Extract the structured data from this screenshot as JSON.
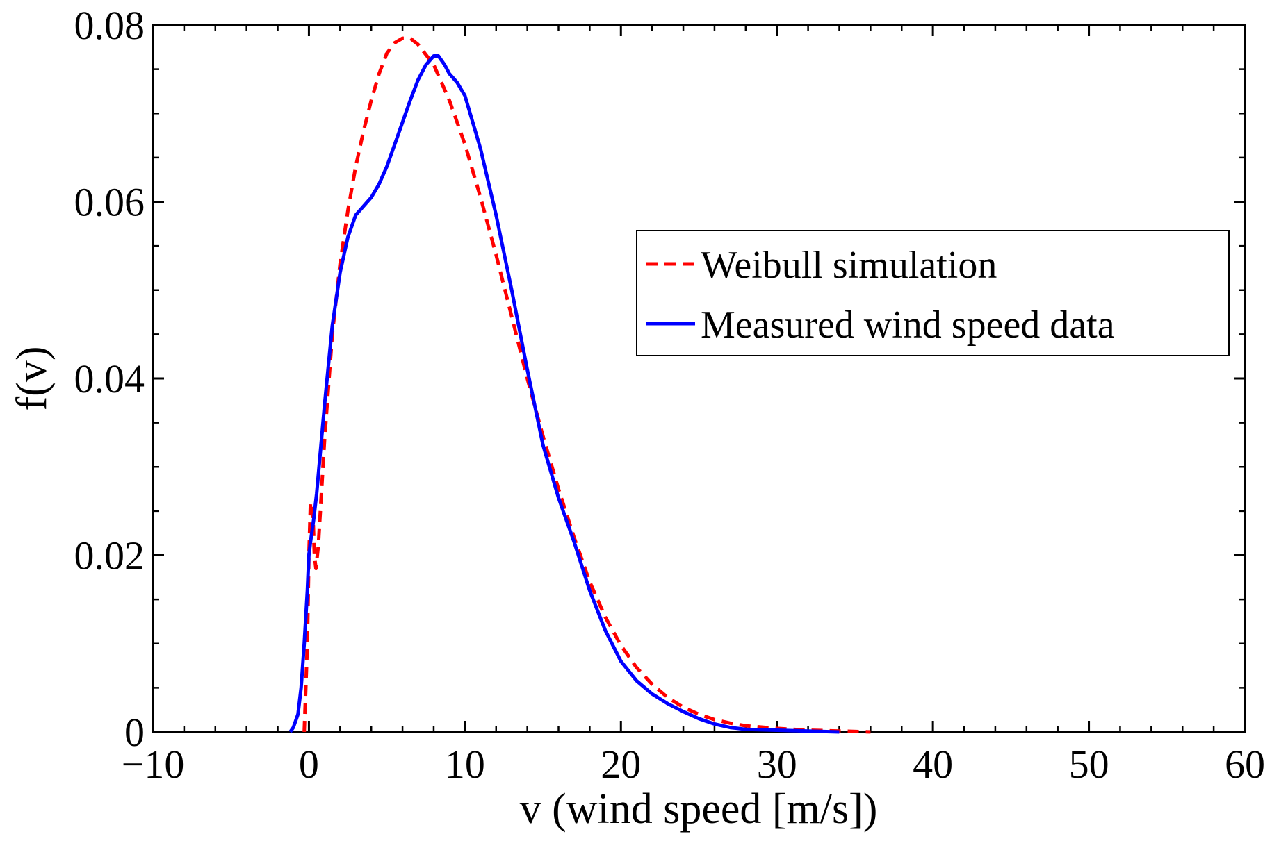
{
  "chart_data": {
    "type": "line",
    "title": "",
    "xlabel": "v (wind speed [m/s])",
    "ylabel": "f(v)",
    "xlim": [
      -10,
      60
    ],
    "ylim": [
      0,
      0.08
    ],
    "xticks": [
      -10,
      0,
      10,
      20,
      30,
      40,
      50,
      60
    ],
    "xtick_labels": [
      "−10",
      "0",
      "10",
      "20",
      "30",
      "40",
      "50",
      "60"
    ],
    "yticks": [
      0,
      0.02,
      0.04,
      0.06,
      0.08
    ],
    "ytick_labels": [
      "0",
      "0.02",
      "0.04",
      "0.06",
      "0.08"
    ],
    "grid": false,
    "legend_position": "upper-right",
    "series": [
      {
        "name": "Weibull simulation",
        "color": "#ff0000",
        "style": "dashed",
        "points": [
          [
            -0.3,
            0
          ],
          [
            -0.1,
            0.01
          ],
          [
            0.0,
            0.02
          ],
          [
            0.1,
            0.026
          ],
          [
            0.25,
            0.025
          ],
          [
            0.35,
            0.02
          ],
          [
            0.45,
            0.0185
          ],
          [
            0.6,
            0.021
          ],
          [
            0.8,
            0.027
          ],
          [
            1.0,
            0.033
          ],
          [
            1.5,
            0.045
          ],
          [
            2.0,
            0.053
          ],
          [
            2.5,
            0.059
          ],
          [
            3.0,
            0.064
          ],
          [
            3.5,
            0.068
          ],
          [
            4.0,
            0.0715
          ],
          [
            4.5,
            0.0745
          ],
          [
            5.0,
            0.0768
          ],
          [
            5.5,
            0.078
          ],
          [
            6.0,
            0.0785
          ],
          [
            6.5,
            0.0785
          ],
          [
            7.0,
            0.0778
          ],
          [
            8.0,
            0.0755
          ],
          [
            9.0,
            0.0715
          ],
          [
            10.0,
            0.0665
          ],
          [
            11.0,
            0.0605
          ],
          [
            12.0,
            0.054
          ],
          [
            13.0,
            0.047
          ],
          [
            14.0,
            0.04
          ],
          [
            15.0,
            0.0335
          ],
          [
            16.0,
            0.0275
          ],
          [
            17.0,
            0.022
          ],
          [
            18.0,
            0.017
          ],
          [
            19.0,
            0.013
          ],
          [
            20.0,
            0.0098
          ],
          [
            21.0,
            0.0073
          ],
          [
            22.0,
            0.0054
          ],
          [
            23.0,
            0.0039
          ],
          [
            24.0,
            0.0028
          ],
          [
            25.0,
            0.002
          ],
          [
            26.0,
            0.0014
          ],
          [
            27.0,
            0.001
          ],
          [
            28.0,
            0.0007
          ],
          [
            30.0,
            0.0004
          ],
          [
            32.0,
            0.0002
          ],
          [
            34.0,
            0.0001
          ],
          [
            36.0,
            0.0
          ]
        ]
      },
      {
        "name": "Measured wind speed data",
        "color": "#0000ff",
        "style": "solid",
        "points": [
          [
            -1.2,
            0
          ],
          [
            -1.0,
            0.0005
          ],
          [
            -0.7,
            0.002
          ],
          [
            -0.5,
            0.005
          ],
          [
            -0.3,
            0.01
          ],
          [
            -0.1,
            0.016
          ],
          [
            0.0,
            0.02
          ],
          [
            0.1,
            0.0215
          ],
          [
            0.3,
            0.024
          ],
          [
            0.5,
            0.027
          ],
          [
            0.8,
            0.033
          ],
          [
            1.0,
            0.037
          ],
          [
            1.5,
            0.046
          ],
          [
            2.0,
            0.052
          ],
          [
            2.5,
            0.056
          ],
          [
            3.0,
            0.0585
          ],
          [
            3.5,
            0.0595
          ],
          [
            4.0,
            0.0605
          ],
          [
            4.5,
            0.062
          ],
          [
            5.0,
            0.064
          ],
          [
            5.5,
            0.0665
          ],
          [
            6.0,
            0.069
          ],
          [
            6.5,
            0.0715
          ],
          [
            7.0,
            0.0738
          ],
          [
            7.5,
            0.0755
          ],
          [
            8.0,
            0.0765
          ],
          [
            8.3,
            0.0765
          ],
          [
            8.7,
            0.0755
          ],
          [
            9.0,
            0.0745
          ],
          [
            9.5,
            0.0735
          ],
          [
            10.0,
            0.072
          ],
          [
            11.0,
            0.066
          ],
          [
            12.0,
            0.0585
          ],
          [
            13.0,
            0.05
          ],
          [
            14.0,
            0.041
          ],
          [
            15.0,
            0.0325
          ],
          [
            16.0,
            0.0265
          ],
          [
            17.0,
            0.0215
          ],
          [
            18.0,
            0.016
          ],
          [
            19.0,
            0.0115
          ],
          [
            20.0,
            0.008
          ],
          [
            21.0,
            0.0058
          ],
          [
            22.0,
            0.0043
          ],
          [
            23.0,
            0.0032
          ],
          [
            24.0,
            0.0023
          ],
          [
            25.0,
            0.0015
          ],
          [
            26.0,
            0.0009
          ],
          [
            27.0,
            0.0005
          ],
          [
            28.0,
            0.0003
          ],
          [
            30.0,
            0.0002
          ],
          [
            32.0,
            0.0001
          ],
          [
            34.0,
            0.0
          ]
        ]
      }
    ]
  }
}
